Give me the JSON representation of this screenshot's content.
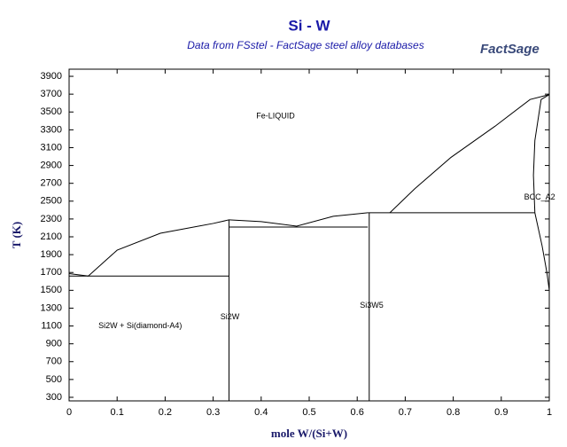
{
  "chart_data": {
    "type": "line",
    "title": "Si - W",
    "subtitle": "Data from FSstel - FactSage steel alloy databases",
    "logo": "FactSage",
    "xlabel": "mole W/(Si+W)",
    "ylabel": "T (K)",
    "xlim": [
      0,
      1
    ],
    "ylim": [
      260,
      3980
    ],
    "xticks": [
      0,
      0.1,
      0.2,
      0.3,
      0.4,
      0.5,
      0.6,
      0.7,
      0.8,
      0.9,
      1
    ],
    "yticks": [
      300,
      500,
      700,
      900,
      1100,
      1300,
      1500,
      1700,
      1900,
      2100,
      2300,
      2500,
      2700,
      2900,
      3100,
      3300,
      3500,
      3700,
      3900
    ],
    "series": [
      {
        "color": "#000000",
        "x": [
          0,
          0.04,
          0.1,
          0.19,
          0.3,
          0.333
        ],
        "values": [
          1687,
          1660,
          1950,
          2140,
          2250,
          2290
        ]
      },
      {
        "color": "#000000",
        "x": [
          0.333,
          0.4,
          0.474,
          0.55,
          0.622
        ],
        "values": [
          2290,
          2270,
          2220,
          2330,
          2370
        ]
      },
      {
        "color": "#000000",
        "x": [
          0,
          0.333
        ],
        "values": [
          1660,
          1660
        ]
      },
      {
        "color": "#000000",
        "x": [
          0.333,
          0.622
        ],
        "values": [
          2210,
          2210
        ]
      },
      {
        "color": "#000000",
        "x": [
          0.622,
          0.97
        ],
        "values": [
          2370,
          2370
        ]
      },
      {
        "color": "#000000",
        "x": [
          0.333,
          0.333
        ],
        "values": [
          260,
          2290
        ]
      },
      {
        "color": "#000000",
        "x": [
          0.625,
          0.625
        ],
        "values": [
          260,
          2370
        ]
      },
      {
        "color": "#000000",
        "x": [
          0.668,
          0.72,
          0.795,
          0.887,
          0.96,
          1
        ],
        "values": [
          2370,
          2640,
          2990,
          3340,
          3640,
          3695
        ]
      },
      {
        "color": "#000000",
        "x": [
          1,
          0.983,
          0.97,
          0.967,
          0.97
        ],
        "values": [
          3695,
          3640,
          3180,
          2790,
          2370
        ]
      },
      {
        "color": "#000000",
        "x": [
          0.97,
          0.985,
          0.995,
          1
        ],
        "values": [
          2370,
          2000,
          1700,
          1500
        ]
      }
    ],
    "annotations": [
      {
        "text": "Fe-LIQUID",
        "x": 0.43,
        "y": 3450
      },
      {
        "text": "BCC_A2",
        "x": 0.98,
        "y": 2540
      },
      {
        "text": "Si2W",
        "x": 0.335,
        "y": 1200
      },
      {
        "text": "Si3W5",
        "x": 0.63,
        "y": 1330
      },
      {
        "text": "Si2W + Si(diamond-A4)",
        "x": 0.148,
        "y": 1100
      }
    ]
  }
}
